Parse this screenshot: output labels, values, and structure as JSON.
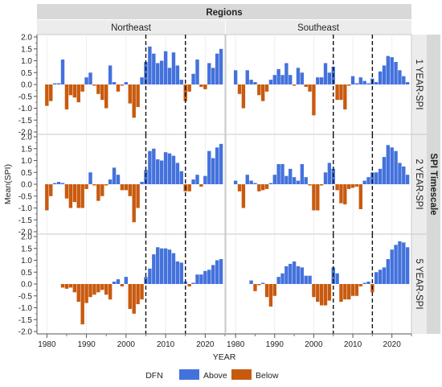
{
  "chart_data": {
    "type": "bar",
    "title": "Regions",
    "row_group_title": "SPI Timescale",
    "columns": [
      "Northeast",
      "Southeast"
    ],
    "rows": [
      "1 YEAR-SPI",
      "2 YEAR-SPI",
      "5 YEAR-SPI"
    ],
    "xlabel": "YEAR",
    "ylabel": "Mean(SPI)",
    "xlim": [
      1977.5,
      2025
    ],
    "xticks": [
      "1980",
      "1990",
      "2000",
      "2010",
      "2020"
    ],
    "ylim": [
      -2.0,
      2.0
    ],
    "yticks": [
      "-2.0",
      "-1.5",
      "-1.0",
      "-0.5",
      "0.0",
      "0.5",
      "1.0",
      "1.5",
      "2.0"
    ],
    "reference_lines_x": [
      2005,
      2015
    ],
    "legend": {
      "title": "DFN",
      "position": "bottom",
      "entries": [
        {
          "label": "Above",
          "color": "#4472dc"
        },
        {
          "label": "Below",
          "color": "#c85a0f"
        }
      ]
    },
    "year_start": 1980,
    "panels": [
      {
        "row": "1 YEAR-SPI",
        "column": "Northeast",
        "values": [
          -0.9,
          -0.7,
          0.05,
          0.05,
          1.05,
          -1.05,
          -0.45,
          -0.55,
          -0.75,
          -0.3,
          0.3,
          0.5,
          -0.05,
          -0.4,
          -0.65,
          -1.0,
          0.8,
          0.1,
          -0.3,
          -0.05,
          0.1,
          -0.8,
          -1.4,
          -0.95,
          0.3,
          0.95,
          1.6,
          1.3,
          0.9,
          1.0,
          1.4,
          0.7,
          1.35,
          0.8,
          0.2,
          -0.7,
          -0.3,
          0.45,
          1.05,
          -0.1,
          -0.2,
          0.9,
          0.7,
          1.3,
          1.5
        ]
      },
      {
        "row": "1 YEAR-SPI",
        "column": "Southeast",
        "values": [
          0.6,
          -0.4,
          -1.0,
          0.6,
          0.2,
          0.1,
          -0.45,
          -0.7,
          -0.3,
          0.2,
          0.4,
          0.65,
          0.4,
          0.9,
          0.4,
          -0.05,
          0.7,
          0.5,
          -0.1,
          -0.3,
          -1.3,
          0.3,
          0.3,
          0.9,
          0.5,
          0.75,
          -0.65,
          -0.65,
          -1.05,
          -0.05,
          0.35,
          0.05,
          0.3,
          0.15,
          0.05,
          0.25,
          0.1,
          0.55,
          0.8,
          1.2,
          1.15,
          0.95,
          0.6,
          0.35,
          0.1
        ]
      },
      {
        "row": "2 YEAR-SPI",
        "column": "Northeast",
        "values": [
          -1.1,
          -0.5,
          0.05,
          0.1,
          0.05,
          -0.6,
          -1.0,
          -0.75,
          -1.0,
          -1.0,
          -0.2,
          0.5,
          -0.05,
          -0.7,
          -0.5,
          -0.05,
          0.2,
          0.7,
          0.4,
          -0.25,
          -0.25,
          -0.5,
          -1.6,
          -1.0,
          0.1,
          0.6,
          1.4,
          1.5,
          1.05,
          1.0,
          1.35,
          1.3,
          1.2,
          0.9,
          0.55,
          -0.3,
          -0.3,
          0.2,
          0.4,
          -0.1,
          0.35,
          1.4,
          1.1,
          1.55,
          1.7
        ]
      },
      {
        "row": "2 YEAR-SPI",
        "column": "Southeast",
        "values": [
          0.15,
          -0.3,
          -1.0,
          0.4,
          0.15,
          0.05,
          -0.3,
          -0.25,
          -0.2,
          0.05,
          0.4,
          0.85,
          0.85,
          0.35,
          0.65,
          0.3,
          0.15,
          0.85,
          0.3,
          -0.05,
          -1.1,
          -1.1,
          -0.05,
          0.5,
          0.9,
          0.65,
          -0.25,
          -0.8,
          -0.85,
          -0.2,
          -0.15,
          -0.1,
          -1.05,
          0.15,
          0.3,
          0.5,
          0.5,
          0.65,
          1.15,
          1.65,
          1.55,
          1.4,
          0.9,
          0.75,
          0.4
        ]
      },
      {
        "row": "5 YEAR-SPI",
        "column": "Northeast",
        "values": [
          0,
          0,
          0,
          0,
          -0.15,
          -0.2,
          -0.15,
          -0.35,
          -0.75,
          -1.7,
          -0.8,
          -0.55,
          -0.45,
          -0.35,
          -0.25,
          -0.45,
          -0.65,
          0.1,
          0.2,
          -0.1,
          0.3,
          -1.05,
          -1.25,
          -0.85,
          -0.65,
          0.3,
          0.65,
          1.25,
          1.55,
          1.5,
          1.5,
          1.45,
          1.3,
          0.95,
          0.9,
          0.1,
          -0.1,
          0.05,
          0.4,
          0.4,
          0.55,
          0.6,
          0.8,
          1.0,
          1.05
        ]
      },
      {
        "row": "5 YEAR-SPI",
        "column": "Southeast",
        "values": [
          0,
          0,
          0,
          0,
          0.15,
          -0.3,
          -0.05,
          0.05,
          -0.55,
          -0.95,
          -0.5,
          0.3,
          0.45,
          0.75,
          0.85,
          0.95,
          0.75,
          0.7,
          0.35,
          0.35,
          -0.55,
          -0.75,
          -0.9,
          -0.9,
          -0.7,
          0.7,
          0.45,
          -0.75,
          -0.65,
          -0.65,
          -0.5,
          -0.5,
          -0.1,
          0.05,
          0.1,
          -0.35,
          0.5,
          0.6,
          0.7,
          1.05,
          1.45,
          1.65,
          1.8,
          1.75,
          1.55
        ]
      }
    ]
  }
}
